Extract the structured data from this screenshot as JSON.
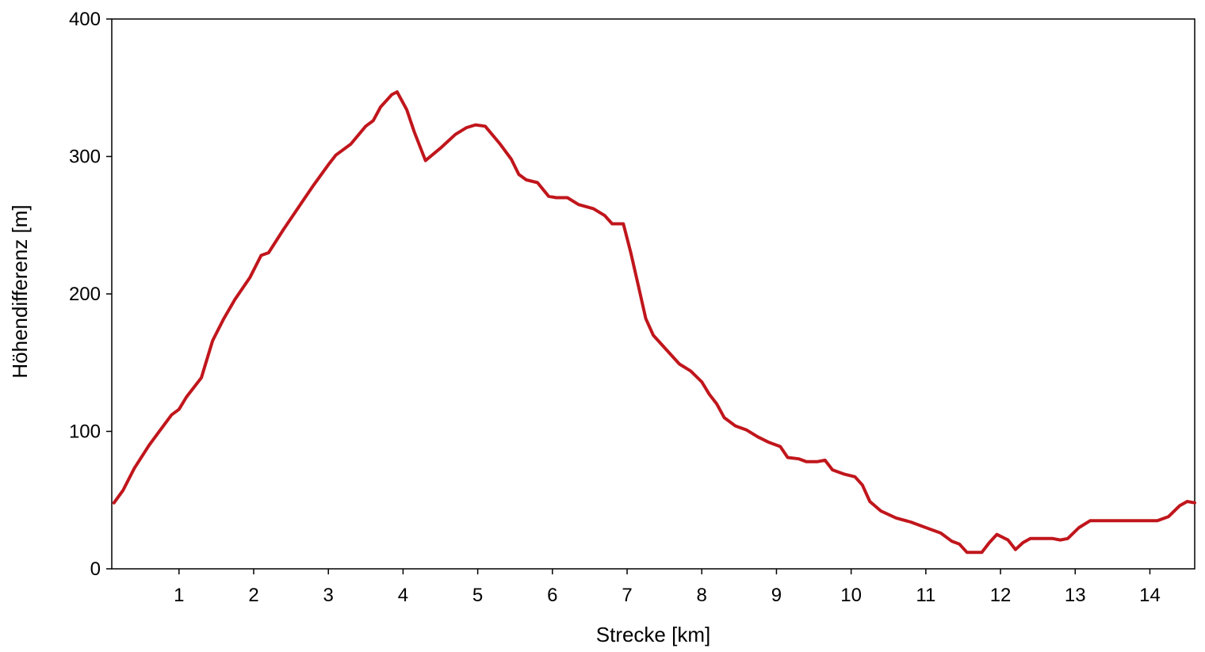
{
  "chart_data": {
    "type": "line",
    "title": "",
    "xlabel": "Strecke [km]",
    "ylabel": "Höhendifferenz [m]",
    "xlim": [
      0.1,
      14.6
    ],
    "ylim": [
      0,
      400
    ],
    "x_ticks": [
      1,
      2,
      3,
      4,
      5,
      6,
      7,
      8,
      9,
      10,
      11,
      12,
      13,
      14
    ],
    "y_ticks": [
      0,
      100,
      200,
      300,
      400
    ],
    "grid": false,
    "legend": "none",
    "series": [
      {
        "color": "#c0161c",
        "points": [
          [
            0.13,
            48
          ],
          [
            0.25,
            57
          ],
          [
            0.4,
            73
          ],
          [
            0.6,
            90
          ],
          [
            0.75,
            101
          ],
          [
            0.9,
            112
          ],
          [
            1.0,
            116
          ],
          [
            1.1,
            125
          ],
          [
            1.3,
            139
          ],
          [
            1.45,
            166
          ],
          [
            1.6,
            182
          ],
          [
            1.75,
            196
          ],
          [
            1.95,
            212
          ],
          [
            2.1,
            228
          ],
          [
            2.2,
            230
          ],
          [
            2.4,
            247
          ],
          [
            2.6,
            263
          ],
          [
            2.8,
            279
          ],
          [
            3.0,
            294
          ],
          [
            3.1,
            301
          ],
          [
            3.3,
            309
          ],
          [
            3.5,
            322
          ],
          [
            3.6,
            326
          ],
          [
            3.7,
            336
          ],
          [
            3.85,
            345
          ],
          [
            3.92,
            347
          ],
          [
            4.05,
            334
          ],
          [
            4.15,
            318
          ],
          [
            4.3,
            297
          ],
          [
            4.5,
            306
          ],
          [
            4.7,
            316
          ],
          [
            4.85,
            321
          ],
          [
            4.97,
            323
          ],
          [
            5.1,
            322
          ],
          [
            5.3,
            309
          ],
          [
            5.45,
            298
          ],
          [
            5.55,
            287
          ],
          [
            5.65,
            283
          ],
          [
            5.8,
            281
          ],
          [
            5.95,
            271
          ],
          [
            6.05,
            270
          ],
          [
            6.2,
            270
          ],
          [
            6.35,
            265
          ],
          [
            6.55,
            262
          ],
          [
            6.7,
            257
          ],
          [
            6.8,
            251
          ],
          [
            6.95,
            251
          ],
          [
            7.05,
            230
          ],
          [
            7.15,
            206
          ],
          [
            7.25,
            182
          ],
          [
            7.35,
            170
          ],
          [
            7.55,
            158
          ],
          [
            7.7,
            149
          ],
          [
            7.85,
            144
          ],
          [
            8.0,
            136
          ],
          [
            8.1,
            127
          ],
          [
            8.2,
            120
          ],
          [
            8.3,
            110
          ],
          [
            8.45,
            104
          ],
          [
            8.6,
            101
          ],
          [
            8.75,
            96
          ],
          [
            8.9,
            92
          ],
          [
            9.05,
            89
          ],
          [
            9.15,
            81
          ],
          [
            9.3,
            80
          ],
          [
            9.4,
            78
          ],
          [
            9.55,
            78
          ],
          [
            9.65,
            79
          ],
          [
            9.75,
            72
          ],
          [
            9.9,
            69
          ],
          [
            10.05,
            67
          ],
          [
            10.15,
            61
          ],
          [
            10.25,
            49
          ],
          [
            10.4,
            42
          ],
          [
            10.6,
            37
          ],
          [
            10.8,
            34
          ],
          [
            11.0,
            30
          ],
          [
            11.2,
            26
          ],
          [
            11.35,
            20
          ],
          [
            11.45,
            18
          ],
          [
            11.55,
            12
          ],
          [
            11.75,
            12
          ],
          [
            11.85,
            19
          ],
          [
            11.95,
            25
          ],
          [
            12.1,
            21
          ],
          [
            12.2,
            14
          ],
          [
            12.3,
            19
          ],
          [
            12.4,
            22
          ],
          [
            12.7,
            22
          ],
          [
            12.8,
            21
          ],
          [
            12.9,
            22
          ],
          [
            13.05,
            30
          ],
          [
            13.2,
            35
          ],
          [
            13.5,
            35
          ],
          [
            14.1,
            35
          ],
          [
            14.25,
            38
          ],
          [
            14.4,
            46
          ],
          [
            14.5,
            49
          ],
          [
            14.6,
            48
          ]
        ]
      }
    ]
  }
}
